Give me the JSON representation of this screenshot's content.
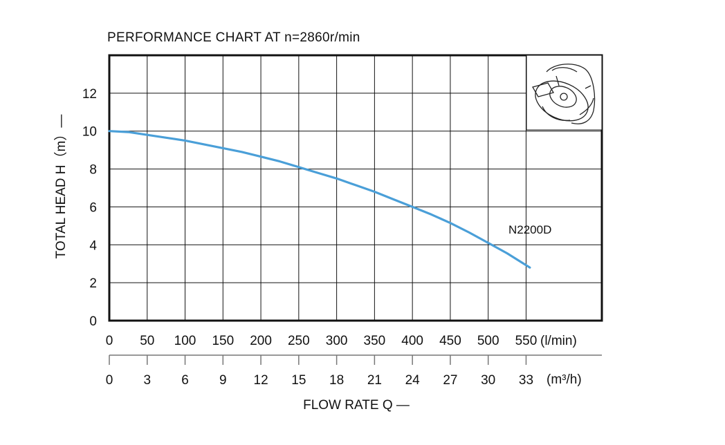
{
  "chart_data": {
    "type": "line",
    "title": "PERFORMANCE  CHART  AT  n=2860r/min",
    "ylabel": "TOTAL HEAD  H（m）—",
    "xlabel": "FLOW  RATE  Q  —",
    "x_unit_lmin": "(l/min)",
    "x_unit_m3h": "(m³/h)",
    "xlim": [
      0,
      650
    ],
    "ylim": [
      0,
      14
    ],
    "grid": true,
    "x_ticks_lmin": [
      "0",
      "50",
      "100",
      "150",
      "200",
      "250",
      "300",
      "350",
      "400",
      "450",
      "500",
      "550"
    ],
    "x_ticks_m3h": [
      "0",
      "3",
      "6",
      "9",
      "12",
      "15",
      "18",
      "21",
      "24",
      "27",
      "30",
      "33"
    ],
    "y_ticks": [
      "0",
      "2",
      "4",
      "6",
      "8",
      "10",
      "12"
    ],
    "series": [
      {
        "name": "N2200D",
        "color": "#4a9fd8",
        "x": [
          0,
          25,
          50,
          75,
          100,
          125,
          150,
          175,
          200,
          225,
          250,
          275,
          300,
          325,
          350,
          375,
          400,
          425,
          450,
          475,
          500,
          525,
          555
        ],
        "y": [
          10.0,
          9.95,
          9.8,
          9.65,
          9.5,
          9.3,
          9.1,
          8.9,
          8.65,
          8.4,
          8.1,
          7.8,
          7.5,
          7.15,
          6.8,
          6.4,
          6.0,
          5.6,
          5.15,
          4.65,
          4.1,
          3.55,
          2.8
        ]
      }
    ]
  }
}
